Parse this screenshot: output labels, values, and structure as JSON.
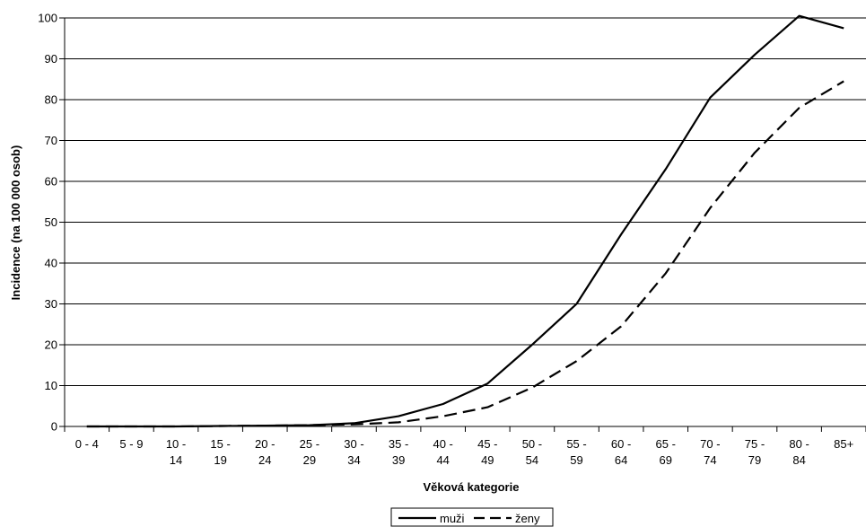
{
  "chart_data": {
    "type": "line",
    "title": "",
    "xlabel": "Věková kategorie",
    "ylabel": "Incidence (na 100 000 osob)",
    "ylim": [
      0,
      100
    ],
    "yticks": [
      "0",
      "10",
      "20",
      "30",
      "40",
      "50",
      "60",
      "70",
      "80",
      "90",
      "100"
    ],
    "grid": true,
    "legend_position": "bottom",
    "categories": [
      [
        "0 - 4"
      ],
      [
        "5 - 9"
      ],
      [
        "10 -",
        "14"
      ],
      [
        "15 -",
        "19"
      ],
      [
        "20 -",
        "24"
      ],
      [
        "25 -",
        "29"
      ],
      [
        "30 -",
        "34"
      ],
      [
        "35 -",
        "39"
      ],
      [
        "40 -",
        "44"
      ],
      [
        "45 -",
        "49"
      ],
      [
        "50 -",
        "54"
      ],
      [
        "55 -",
        "59"
      ],
      [
        "60 -",
        "64"
      ],
      [
        "65 -",
        "69"
      ],
      [
        "70 -",
        "74"
      ],
      [
        "75 -",
        "79"
      ],
      [
        "80 -",
        "84"
      ],
      [
        "85+"
      ]
    ],
    "series": [
      {
        "name": "muži",
        "style": "solid",
        "values": [
          0,
          0,
          0,
          0.1,
          0.2,
          0.3,
          0.8,
          2.5,
          5.5,
          10.5,
          20,
          30,
          47,
          63,
          80.5,
          91,
          100.5,
          97.5
        ]
      },
      {
        "name": "ženy",
        "style": "dashed",
        "values": [
          0,
          0,
          0,
          0.1,
          0.2,
          0.3,
          0.5,
          1.0,
          2.5,
          4.7,
          9.5,
          16,
          24.5,
          37.5,
          53.5,
          67,
          78,
          84.5
        ]
      }
    ],
    "colors": {
      "lines": "#000000",
      "grid": "#000000",
      "background": "#ffffff"
    }
  }
}
